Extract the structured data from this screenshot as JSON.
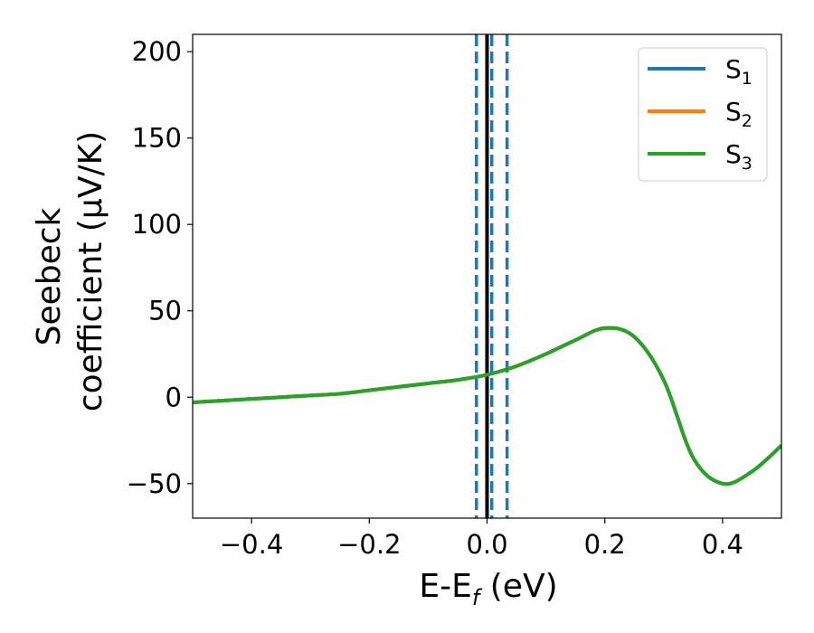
{
  "chart_data": {
    "type": "line",
    "xlabel": {
      "main": "E-E",
      "sub": "f",
      "tail": " (eV)"
    },
    "ylabel": {
      "line1": "Seebeck",
      "line2": "coefficient  (μV/K)"
    },
    "xlim": [
      -0.5,
      0.5
    ],
    "ylim": [
      -70,
      210
    ],
    "xticks": [
      -0.4,
      -0.2,
      0.0,
      0.2,
      0.4
    ],
    "xtick_labels": [
      "−0.4",
      "−0.2",
      "0.0",
      "0.2",
      "0.4"
    ],
    "yticks": [
      -50,
      0,
      50,
      100,
      150,
      200
    ],
    "ytick_labels": [
      "−50",
      "0",
      "50",
      "100",
      "150",
      "200"
    ],
    "grid": false,
    "legend_position": "top-right",
    "series": [
      {
        "name": "S",
        "sub": "1",
        "color": "#1f77b4",
        "x": [
          -0.5,
          -0.45,
          -0.4,
          -0.35,
          -0.3,
          -0.25,
          -0.2,
          -0.15,
          -0.1,
          -0.05,
          0.0,
          0.05,
          0.1,
          0.15,
          0.2,
          0.25,
          0.3,
          0.35,
          0.4,
          0.45,
          0.5
        ],
        "y": [
          -3,
          -2,
          -1,
          0,
          1,
          2,
          4,
          6,
          8,
          10,
          13,
          18,
          25,
          33,
          40,
          35,
          10,
          -35,
          -50,
          -43,
          -28
        ]
      },
      {
        "name": "S",
        "sub": "2",
        "color": "#ff7f0e",
        "x": [
          -0.5,
          -0.45,
          -0.4,
          -0.35,
          -0.3,
          -0.25,
          -0.2,
          -0.15,
          -0.1,
          -0.05,
          0.0,
          0.05,
          0.1,
          0.15,
          0.2,
          0.25,
          0.3,
          0.35,
          0.4,
          0.45,
          0.5
        ],
        "y": [
          -3,
          -2,
          -1,
          0,
          1,
          2,
          4,
          6,
          8,
          10,
          13,
          18,
          25,
          33,
          40,
          35,
          10,
          -35,
          -50,
          -43,
          -28
        ]
      },
      {
        "name": "S",
        "sub": "3",
        "color": "#2ca02c",
        "x": [
          -0.5,
          -0.45,
          -0.4,
          -0.35,
          -0.3,
          -0.25,
          -0.2,
          -0.15,
          -0.1,
          -0.05,
          0.0,
          0.05,
          0.1,
          0.15,
          0.2,
          0.25,
          0.3,
          0.35,
          0.4,
          0.45,
          0.5
        ],
        "y": [
          -3,
          -2,
          -1,
          0,
          1,
          2,
          4,
          6,
          8,
          10,
          13,
          18,
          25,
          33,
          40,
          35,
          10,
          -35,
          -50,
          -43,
          -28
        ]
      }
    ],
    "vertical_lines": [
      {
        "x": 0.0,
        "style": "solid",
        "color": "#000000"
      },
      {
        "x": -0.018,
        "style": "dashed",
        "color": "#1f77b4"
      },
      {
        "x": 0.008,
        "style": "dashed",
        "color": "#1f77b4"
      },
      {
        "x": 0.034,
        "style": "dashed",
        "color": "#1f77b4"
      }
    ]
  }
}
